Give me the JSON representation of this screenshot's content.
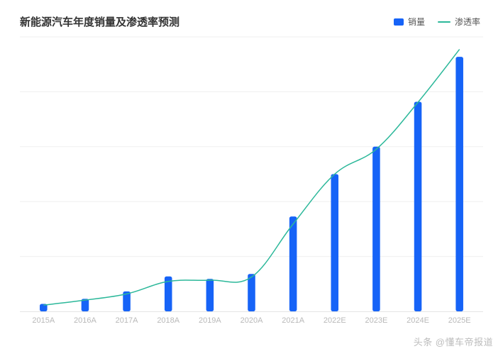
{
  "chart": {
    "type": "bar+line",
    "title": "新能源汽车年度销量及渗透率预测",
    "title_fontsize": 15,
    "title_color": "#333333",
    "background_color": "#ffffff",
    "categories": [
      "2015A",
      "2016A",
      "2017A",
      "2018A",
      "2019A",
      "2020A",
      "2021A",
      "2022E",
      "2023E",
      "2024E",
      "2025E"
    ],
    "bar": {
      "label": "销量",
      "values": [
        3,
        5,
        8,
        14,
        13,
        15,
        38,
        55,
        66,
        84,
        102
      ],
      "color": "#1663f7",
      "width_ratio": 0.18
    },
    "line": {
      "label": "渗透率",
      "values": [
        1.0,
        1.8,
        2.8,
        4.8,
        5.0,
        5.5,
        14.0,
        22.0,
        26.0,
        33.5,
        42.0
      ],
      "color": "#2cb89a",
      "stroke_width": 1.5
    },
    "y_axis": {
      "min": 0,
      "max": 110,
      "gridlines": [
        22,
        44,
        66,
        88,
        110
      ],
      "grid_color": "#efefef",
      "axis_color": "#e4e4e4",
      "show_labels": false
    },
    "y2_axis": {
      "min": 0,
      "max": 44
    },
    "x_axis": {
      "label_color": "#b9b9b9",
      "label_fontsize": 11
    },
    "legend": {
      "position": "top-right",
      "fontsize": 12,
      "text_color": "#555555"
    }
  },
  "watermark": "头条 @懂车帝报道"
}
